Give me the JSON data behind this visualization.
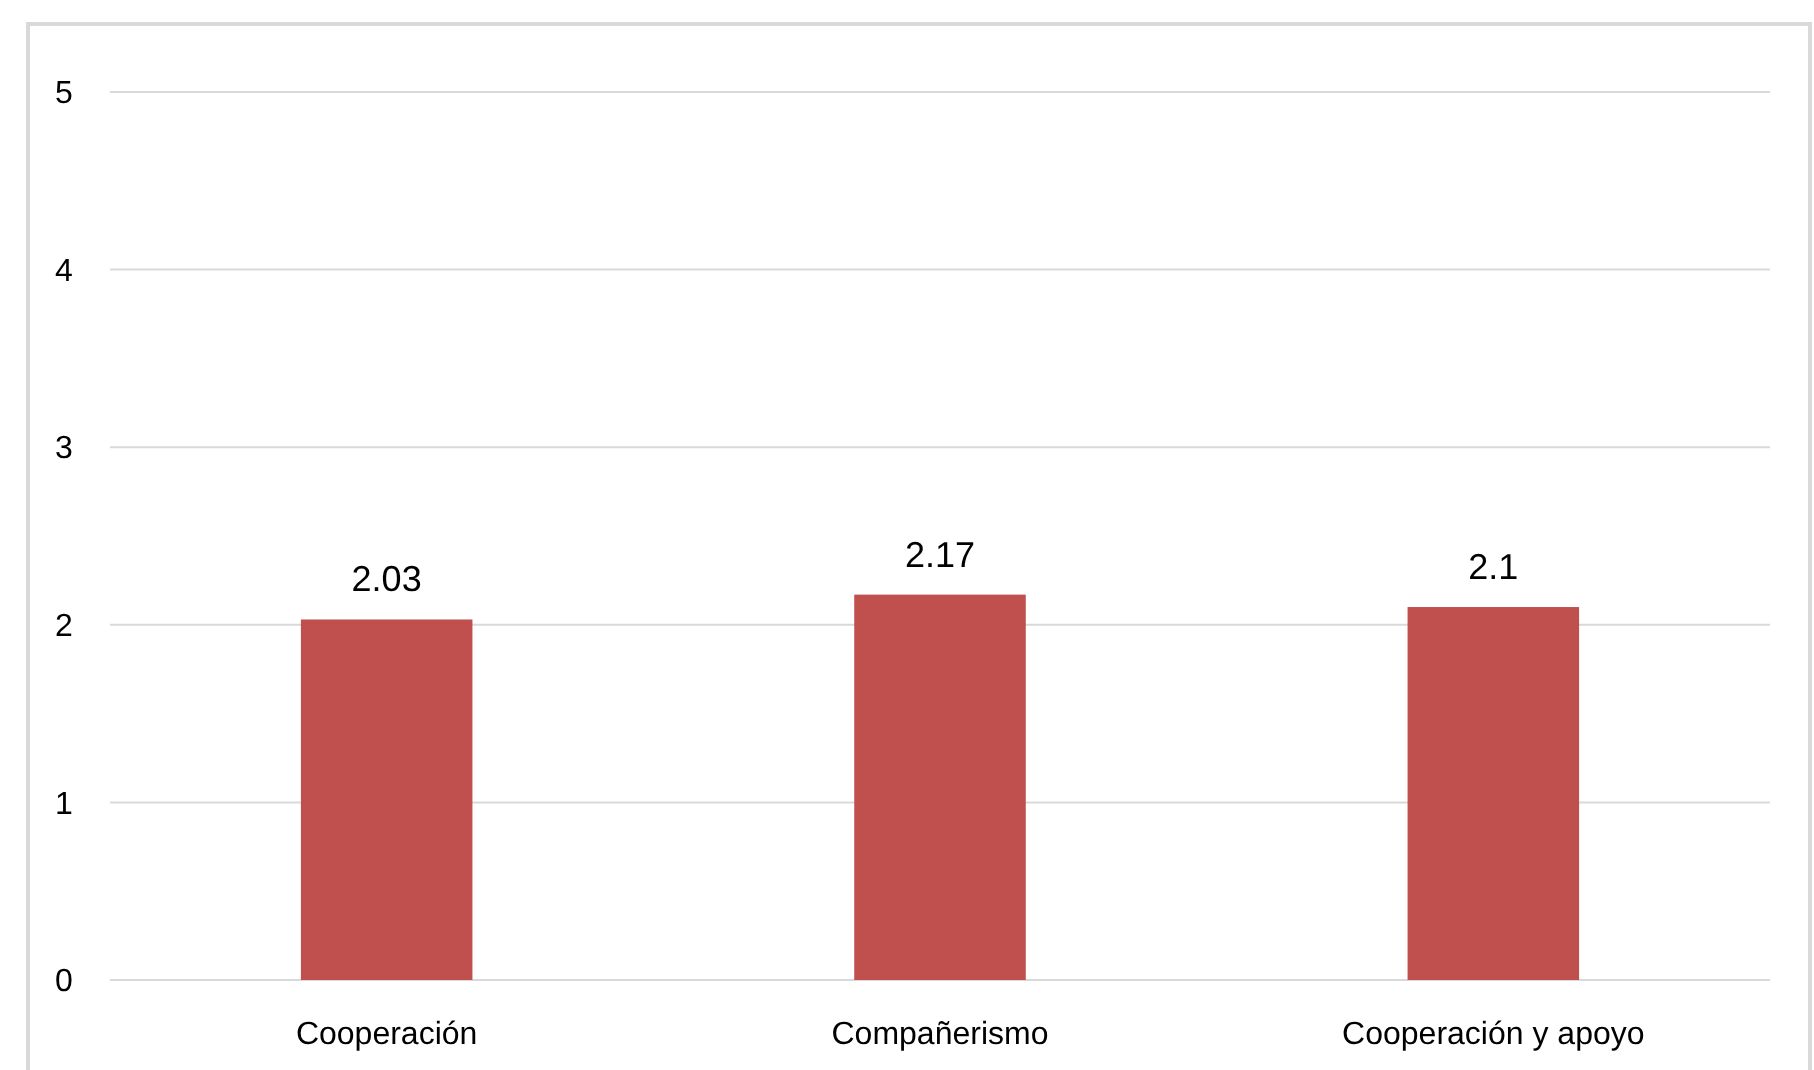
{
  "chart_data": {
    "type": "bar",
    "categories": [
      "Cooperación",
      "Compañerismo",
      "Cooperación y apoyo"
    ],
    "values": [
      2.03,
      2.17,
      2.1
    ],
    "color": "#c0504d",
    "ylim": [
      0,
      5
    ],
    "yticks": [
      0,
      1,
      2,
      3,
      4,
      5
    ],
    "grid": "y",
    "data_labels": true
  }
}
